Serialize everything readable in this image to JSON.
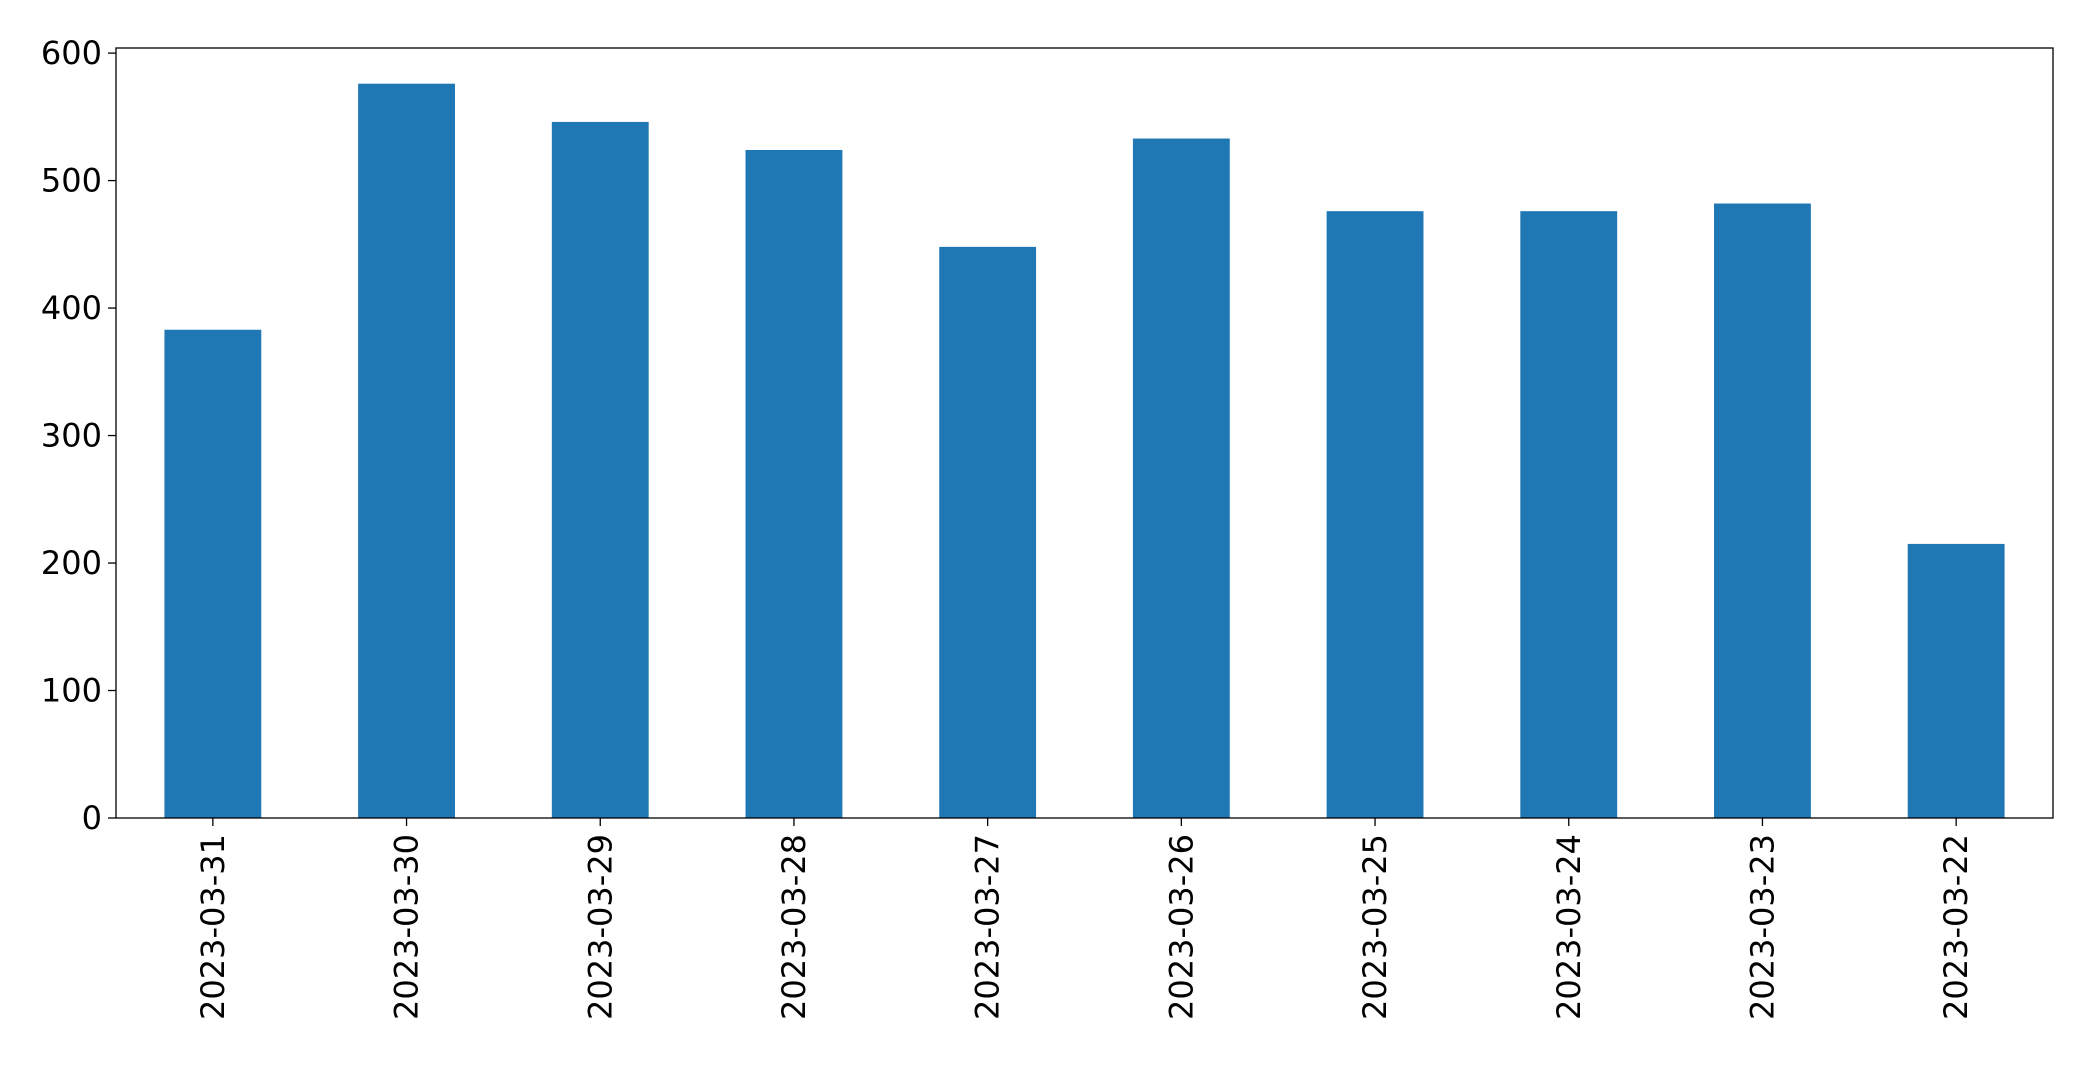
{
  "chart_data": {
    "type": "bar",
    "categories": [
      "2023-03-31",
      "2023-03-30",
      "2023-03-29",
      "2023-03-28",
      "2023-03-27",
      "2023-03-26",
      "2023-03-25",
      "2023-03-24",
      "2023-03-23",
      "2023-03-22"
    ],
    "values": [
      383,
      576,
      546,
      524,
      448,
      533,
      476,
      476,
      482,
      215
    ],
    "color": "#1f77b4",
    "ylim": [
      0,
      604
    ],
    "yticks": [
      0,
      100,
      200,
      300,
      400,
      500,
      600
    ],
    "grid": false
  }
}
